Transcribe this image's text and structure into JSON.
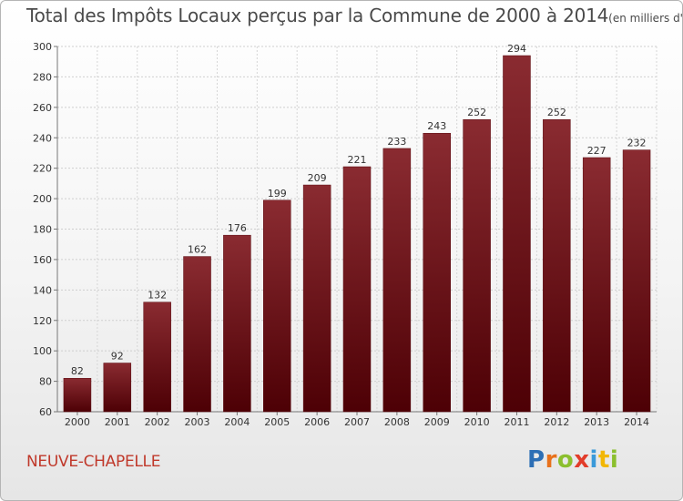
{
  "chart_data": {
    "type": "bar",
    "title": "Total des Impôts Locaux perçus par la Commune de 2000 à 2014",
    "subtitle": "(en milliers d'€)",
    "categories": [
      "2000",
      "2001",
      "2002",
      "2003",
      "2004",
      "2005",
      "2006",
      "2007",
      "2008",
      "2009",
      "2010",
      "2011",
      "2012",
      "2013",
      "2014"
    ],
    "values": [
      82,
      92,
      132,
      162,
      176,
      199,
      209,
      221,
      233,
      243,
      252,
      294,
      252,
      227,
      232
    ],
    "ylim": [
      60,
      300
    ],
    "yticks": [
      60,
      80,
      100,
      120,
      140,
      160,
      180,
      200,
      220,
      240,
      260,
      280,
      300
    ],
    "grid": true,
    "xlabel": "",
    "ylabel": "",
    "bar_color": "#6e1a1f"
  },
  "footer": {
    "commune": "NEUVE-CHAPELLE",
    "logo_letters": [
      "P",
      "r",
      "o",
      "x",
      "i",
      "t",
      "i"
    ],
    "logo_colors": [
      "#2d6fb5",
      "#e8711c",
      "#8bbf2e",
      "#e23c2a",
      "#3b9ad9",
      "#f2b705",
      "#8bbf2e"
    ]
  }
}
